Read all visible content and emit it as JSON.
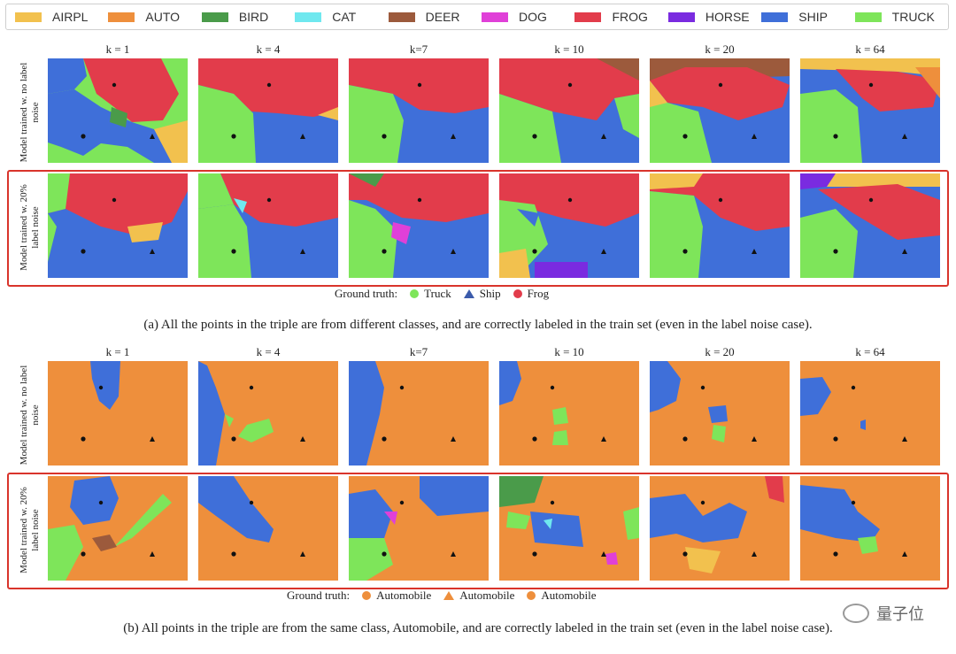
{
  "legend": [
    {
      "label": "AIRPL",
      "color": "#f2c14e"
    },
    {
      "label": "AUTO",
      "color": "#ee8f3c"
    },
    {
      "label": "BIRD",
      "color": "#4a9b4a"
    },
    {
      "label": "CAT",
      "color": "#6fe8ef"
    },
    {
      "label": "DEER",
      "color": "#9c5a3c"
    },
    {
      "label": "DOG",
      "color": "#e040d8"
    },
    {
      "label": "FROG",
      "color": "#e23c4b"
    },
    {
      "label": "HORSE",
      "color": "#7a2be0"
    },
    {
      "label": "SHIP",
      "color": "#3f6fd9"
    },
    {
      "label": "TRUCK",
      "color": "#7ee55a"
    }
  ],
  "a": {
    "k_labels": [
      "k = 1",
      "k = 4",
      "k=7",
      "k = 10",
      "k = 20",
      "k = 64"
    ],
    "row1_label": "Model trained w. no label noise",
    "row2_label": "Model trained w. 20% label noise",
    "ground_truth_title": "Ground truth:",
    "ground_truth": [
      "Truck",
      "Ship",
      "Frog"
    ],
    "caption": "(a) All the points in the triple are from different classes, and are correctly labeled in the train set (even in the label noise case)."
  },
  "b": {
    "k_labels": [
      "k = 1",
      "k = 4",
      "k=7",
      "k = 10",
      "k = 20",
      "k = 64"
    ],
    "row1_label": "Model trained w. no label noise",
    "row2_label": "Model trained w. 20% label noise",
    "ground_truth_title": "Ground truth:",
    "ground_truth": [
      "Automobile",
      "Automobile",
      "Automobile"
    ],
    "caption": "(b) All points in the triple are from the same class, Automobile, and are correctly labeled in the train set (even in the label noise case)."
  },
  "watermark": "量子位"
}
